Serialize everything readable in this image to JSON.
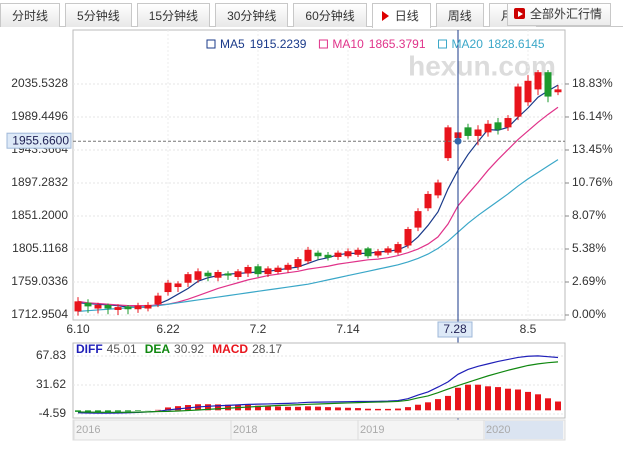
{
  "tabs": [
    {
      "label": "分时线"
    },
    {
      "label": "5分钟线"
    },
    {
      "label": "15分钟线"
    },
    {
      "label": "30分钟线"
    },
    {
      "label": "60分钟线"
    },
    {
      "label": "日线",
      "active": true
    },
    {
      "label": "周线"
    },
    {
      "label": "月线"
    }
  ],
  "all_markets": "全部外汇行情",
  "chart_data": [
    {
      "type": "candlestick",
      "watermark": "hexun.com",
      "grid": true,
      "up_color": "#e8141c",
      "down_color": "#1d9a2e",
      "categories": [
        "6.10",
        null,
        null,
        null,
        null,
        null,
        null,
        null,
        null,
        "6.22",
        null,
        null,
        null,
        null,
        null,
        null,
        null,
        null,
        "7.2",
        null,
        null,
        null,
        null,
        null,
        null,
        null,
        null,
        "7.14",
        null,
        null,
        null,
        null,
        null,
        null,
        null,
        null,
        null,
        null,
        "7.28",
        null,
        null,
        null,
        null,
        null,
        null,
        "8.5",
        null,
        null,
        null
      ],
      "open": [
        1718,
        1730,
        1722,
        1727,
        1720,
        1725,
        1721,
        1722,
        1728,
        1745,
        1752,
        1758,
        1762,
        1772,
        1765,
        1771,
        1766,
        1771,
        1781,
        1770,
        1773,
        1776,
        1780,
        1788,
        1800,
        1797,
        1794,
        1795,
        1797,
        1806,
        1796,
        1800,
        1800,
        1810,
        1835,
        1862,
        1880,
        1932,
        1960,
        1975,
        1963,
        1968,
        1982,
        1975,
        1990,
        2010,
        2028,
        2052,
        2024
      ],
      "close": [
        1732,
        1725,
        1727,
        1722,
        1724,
        1721,
        1726,
        1727,
        1740,
        1758,
        1757,
        1770,
        1774,
        1767,
        1773,
        1768,
        1774,
        1780,
        1770,
        1778,
        1779,
        1783,
        1791,
        1804,
        1795,
        1793,
        1800,
        1802,
        1804,
        1795,
        1802,
        1806,
        1812,
        1833,
        1858,
        1882,
        1898,
        1975,
        1968,
        1963,
        1972,
        1980,
        1972,
        1988,
        2032,
        2040,
        2052,
        2018,
        2028
      ],
      "high": [
        1738,
        1735,
        1730,
        1729,
        1728,
        1727,
        1730,
        1731,
        1744,
        1762,
        1760,
        1773,
        1778,
        1775,
        1776,
        1774,
        1777,
        1783,
        1784,
        1781,
        1782,
        1786,
        1794,
        1808,
        1803,
        1801,
        1803,
        1806,
        1807,
        1808,
        1805,
        1809,
        1815,
        1836,
        1862,
        1886,
        1902,
        1978,
        1975,
        1980,
        1978,
        1985,
        1988,
        1992,
        2036,
        2048,
        2055,
        2055,
        2034
      ],
      "low": [
        1712,
        1716,
        1715,
        1714,
        1713,
        1714,
        1716,
        1718,
        1724,
        1740,
        1745,
        1752,
        1758,
        1760,
        1760,
        1762,
        1762,
        1766,
        1766,
        1766,
        1770,
        1772,
        1776,
        1784,
        1790,
        1789,
        1790,
        1792,
        1794,
        1792,
        1793,
        1797,
        1797,
        1806,
        1830,
        1858,
        1876,
        1928,
        1955,
        1958,
        1950,
        1962,
        1965,
        1970,
        1985,
        2005,
        2020,
        2010,
        2020
      ],
      "series": [
        {
          "name": "MA5",
          "color": "#1a3a8a",
          "values": [
            1730,
            1729,
            1728,
            1727,
            1726,
            1724,
            1724,
            1724,
            1728,
            1734,
            1742,
            1750,
            1760,
            1765,
            1768,
            1770,
            1771,
            1772,
            1773,
            1774,
            1776,
            1778,
            1780,
            1785,
            1790,
            1793,
            1797,
            1799,
            1799,
            1799,
            1801,
            1802,
            1804,
            1810,
            1822,
            1838,
            1857,
            1889,
            1915.2239,
            1937,
            1955,
            1972,
            1971,
            1975,
            1989,
            2002,
            2017,
            2026,
            2034
          ]
        },
        {
          "name": "MA10",
          "color": "#e0338a",
          "values": [
            1732,
            1730,
            1729,
            1728,
            1727,
            1726,
            1726,
            1726,
            1727,
            1728,
            1731,
            1735,
            1740,
            1745,
            1750,
            1754,
            1758,
            1762,
            1765,
            1768,
            1770,
            1772,
            1774,
            1777,
            1779,
            1781,
            1784,
            1786,
            1788,
            1790,
            1791,
            1793,
            1796,
            1800,
            1805,
            1812,
            1822,
            1840,
            1865.3791,
            1882,
            1898,
            1915,
            1930,
            1944,
            1958,
            1970,
            1982,
            1993,
            2003
          ]
        },
        {
          "name": "MA20",
          "color": "#3aa7c8",
          "values": [
            1718,
            1719,
            1720,
            1721,
            1722,
            1723,
            1724,
            1725,
            1726,
            1728,
            1730,
            1732,
            1734,
            1736,
            1738,
            1740,
            1742,
            1744,
            1746,
            1748,
            1750,
            1752,
            1754,
            1756,
            1759,
            1762,
            1765,
            1768,
            1771,
            1774,
            1777,
            1780,
            1783,
            1787,
            1792,
            1798,
            1806,
            1816,
            1828.6145,
            1841,
            1852,
            1862,
            1872,
            1882,
            1893,
            1903,
            1912,
            1921,
            1930
          ]
        }
      ],
      "ylim": [
        1705.97,
        2110.94
      ],
      "yticks": [
        1712.9504,
        1759.0336,
        1805.1168,
        {
          "value": 1851.2,
          "label": "1851.2000"
        },
        1897.2832,
        1943.3664,
        1989.4496,
        2035.5328
      ],
      "y2lim": [
        -0.4076,
        23.23
      ],
      "y2ticks": [
        {
          "value": 0,
          "label": "0.00%"
        },
        {
          "value": 2.69,
          "label": "2.69%"
        },
        {
          "value": 5.38,
          "label": "5.38%"
        },
        {
          "value": 8.07,
          "label": "8.07%"
        },
        {
          "value": 10.76,
          "label": "10.76%"
        },
        {
          "value": 13.45,
          "label": "13.45%"
        },
        {
          "value": 16.14,
          "label": "16.14%"
        },
        {
          "value": 18.83,
          "label": "18.83%"
        }
      ],
      "crosshair": {
        "category": "7.28",
        "price": {
          "value": 1955.66,
          "label": "1955.6600"
        }
      }
    },
    {
      "type": "macd",
      "grid": true,
      "series": [
        {
          "name": "DIFF",
          "color": "#1f1fb8",
          "values": [
            -3,
            -3.4,
            -3.6,
            -3.6,
            -3.4,
            -3.1,
            -2.6,
            -2,
            -1.2,
            0.5,
            1.8,
            3,
            4.2,
            5,
            5.7,
            6.2,
            6.8,
            7.4,
            7.7,
            8,
            8.4,
            8.7,
            9.2,
            10,
            10.2,
            10.4,
            10.6,
            10.8,
            11,
            11,
            11.2,
            11.5,
            12.2,
            14.5,
            19,
            23,
            29,
            35.5,
            45.01,
            51,
            55,
            58,
            61,
            63.5,
            66,
            67.5,
            68,
            67,
            66
          ]
        },
        {
          "name": "DEA",
          "color": "#118811",
          "values": [
            -2,
            -2.2,
            -2.4,
            -2.5,
            -2.5,
            -2.4,
            -2.2,
            -1.9,
            -1.5,
            -1.3,
            -0.8,
            -0.3,
            0.4,
            1.2,
            2,
            2.7,
            3.4,
            4.1,
            4.8,
            5.4,
            6,
            6.5,
            7,
            7.5,
            7.9,
            8.4,
            8.8,
            9.2,
            9.6,
            10,
            10.3,
            10.6,
            11.1,
            12.5,
            15.5,
            18,
            22,
            26.5,
            30.92,
            35,
            39,
            43,
            46.5,
            50,
            53,
            56,
            58,
            59.5,
            60.5
          ]
        },
        {
          "name": "MACD",
          "color": "#e8141c",
          "down_color": "#1d9a2e",
          "type": "bar",
          "values": [
            -2,
            -2.4,
            -2.4,
            -2.2,
            -1.8,
            -1.4,
            -0.8,
            -0.2,
            0.6,
            3.6,
            5.2,
            6.6,
            7.6,
            7.6,
            7.4,
            7,
            6.8,
            6.6,
            5.8,
            5.2,
            4.8,
            4.4,
            4.4,
            5,
            4.6,
            4,
            3.6,
            3.2,
            2.8,
            2,
            1.8,
            1.8,
            2.2,
            4,
            7,
            10,
            14,
            18,
            28.17,
            32,
            32,
            30,
            29,
            27,
            26,
            23,
            20,
            15,
            11
          ]
        }
      ],
      "ylim": [
        -9.58,
        84.06
      ],
      "yticks": [
        67.83,
        31.62,
        -4.59
      ],
      "overview_labels": [
        "2016",
        "2018",
        "2019",
        "2020"
      ]
    }
  ]
}
